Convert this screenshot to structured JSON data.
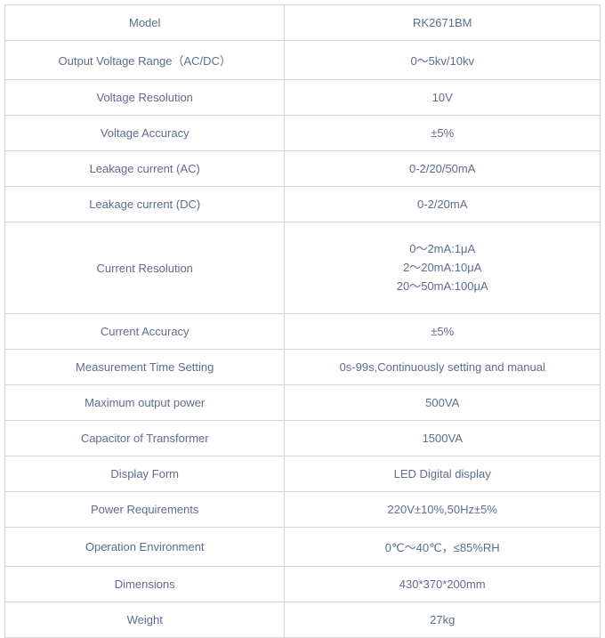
{
  "table": {
    "border_color": "#d5d5d5",
    "text_color": "#5d6d8d",
    "font_size": "13px",
    "font_family": "Arial, sans-serif",
    "rows": [
      {
        "label": "Model",
        "value": "RK2671BM"
      },
      {
        "label": "Output Voltage Range（AC/DC）",
        "value": "0～5kv/10kv"
      },
      {
        "label": "Voltage Resolution",
        "value": "10V"
      },
      {
        "label": "Voltage Accuracy",
        "value": "±5%"
      },
      {
        "label": "Leakage current (AC)",
        "value": "0-2/20/50mA"
      },
      {
        "label": "Leakage current (DC)",
        "value": "0-2/20mA"
      },
      {
        "label": "Current Resolution",
        "value": "0～2mA:1μA\n2～20mA:10μA\n20～50mA:100μA",
        "multiline": true
      },
      {
        "label": "Current Accuracy",
        "value": "±5%"
      },
      {
        "label": "Measurement Time Setting",
        "value": "0s-99s,Continuously setting and manual"
      },
      {
        "label": "Maximum output power",
        "value": "500VA"
      },
      {
        "label": "Capacitor of Transformer",
        "value": "1500VA"
      },
      {
        "label": "Display Form",
        "value": "LED Digital display"
      },
      {
        "label": "Power Requirements",
        "value": "220V±10%,50Hz±5%"
      },
      {
        "label": "Operation Environment",
        "value": "0℃～40℃，≤85%RH"
      },
      {
        "label": "Dimensions",
        "value": "430*370*200mm"
      },
      {
        "label": "Weight",
        "value": "27kg"
      }
    ]
  }
}
